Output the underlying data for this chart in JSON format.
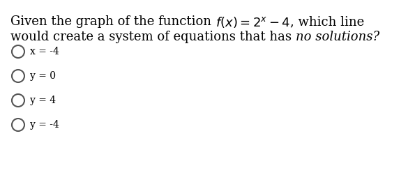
{
  "background_color": "#ffffff",
  "text_color": "#000000",
  "option_text_color": "#1a1a1a",
  "title_parts": [
    {
      "text": "Given the graph of the function ",
      "style": "normal"
    },
    {
      "text": "$f(x) = 2^x - 4$",
      "style": "math"
    },
    {
      "text": ", which line",
      "style": "normal"
    }
  ],
  "line2_parts": [
    {
      "text": "would create a system of equations that has ",
      "style": "normal"
    },
    {
      "text": "no solutions?",
      "style": "italic"
    }
  ],
  "options": [
    "x = -4",
    "y = 0",
    "y = 4",
    "y = -4"
  ],
  "circle_color": "#555555",
  "font_size_title": 13,
  "font_size_options": 10,
  "fig_width": 5.95,
  "fig_height": 2.61,
  "dpi": 100
}
